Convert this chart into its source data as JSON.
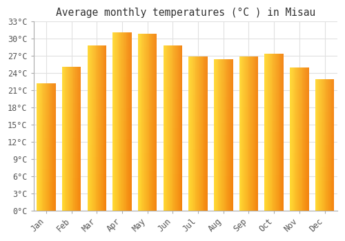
{
  "title": "Average monthly temperatures (°C ) in Misau",
  "months": [
    "Jan",
    "Feb",
    "Mar",
    "Apr",
    "May",
    "Jun",
    "Jul",
    "Aug",
    "Sep",
    "Oct",
    "Nov",
    "Dec"
  ],
  "values": [
    22.2,
    25.1,
    28.8,
    31.1,
    30.9,
    28.8,
    26.9,
    26.4,
    26.9,
    27.4,
    25.0,
    23.0
  ],
  "bar_color_top": "#FFD035",
  "bar_color_bottom": "#F08000",
  "bar_color_right": "#E07800",
  "ylim": [
    0,
    33
  ],
  "yticks": [
    0,
    3,
    6,
    9,
    12,
    15,
    18,
    21,
    24,
    27,
    30,
    33
  ],
  "background_color": "#FFFFFF",
  "grid_color": "#E0E0E0",
  "title_fontsize": 10.5,
  "tick_fontsize": 8.5,
  "font_family": "monospace"
}
